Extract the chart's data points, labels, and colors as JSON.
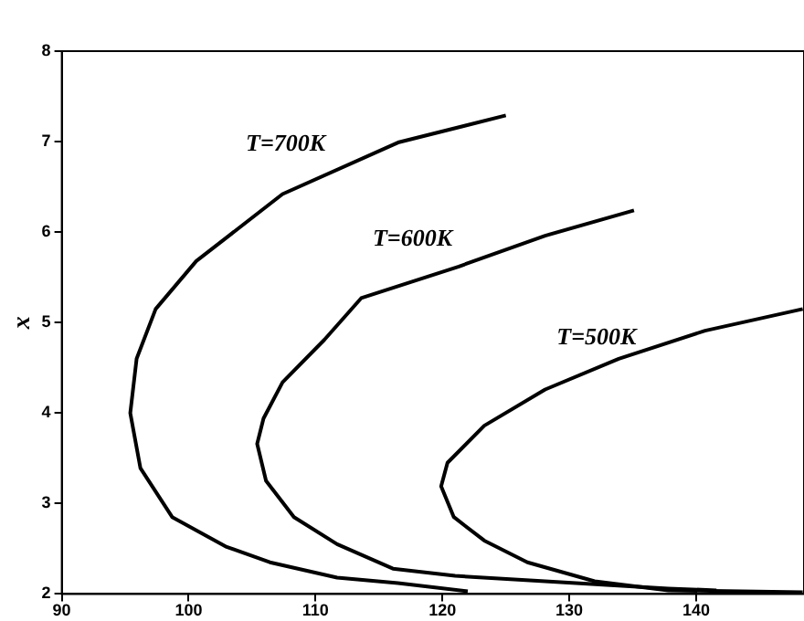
{
  "chart_data": {
    "type": "line",
    "ylabel": "x",
    "xlim": [
      90,
      148.5
    ],
    "ylim": [
      2,
      8
    ],
    "xticks": [
      90,
      100,
      110,
      120,
      130,
      140
    ],
    "yticks": [
      2,
      3,
      4,
      5,
      6,
      7,
      8
    ],
    "grid": false,
    "legend": false,
    "marker": "none",
    "line_style": "solid",
    "series": [
      {
        "name": "T=700K",
        "color": "#000000",
        "x": [
          125,
          116.5,
          107.4,
          100.6,
          97.4,
          95.9,
          95.4,
          96.2,
          98.7,
          103,
          106.4,
          111.7,
          116.5,
          122
        ],
        "values": [
          7.29,
          6.99,
          6.42,
          5.68,
          5.15,
          4.6,
          4.0,
          3.39,
          2.85,
          2.52,
          2.35,
          2.18,
          2.12,
          2.03
        ]
      },
      {
        "name": "T=600K",
        "color": "#000000",
        "x": [
          135.1,
          128.1,
          121.3,
          113.6,
          110.7,
          107.4,
          105.9,
          105.4,
          106.1,
          108.3,
          111.7,
          116.1,
          121,
          128.1,
          137.8,
          141.6
        ],
        "values": [
          6.24,
          5.96,
          5.62,
          5.27,
          4.81,
          4.34,
          3.94,
          3.66,
          3.25,
          2.85,
          2.55,
          2.28,
          2.2,
          2.14,
          2.06,
          2.04
        ]
      },
      {
        "name": "T=500K",
        "color": "#000000",
        "x": [
          148.4,
          140.7,
          133.9,
          128.1,
          123.3,
          120.4,
          119.9,
          120.9,
          123.3,
          126.7,
          132,
          137.8,
          148.4
        ],
        "values": [
          5.15,
          4.91,
          4.6,
          4.26,
          3.86,
          3.45,
          3.19,
          2.85,
          2.59,
          2.35,
          2.14,
          2.04,
          2.02
        ]
      }
    ]
  }
}
